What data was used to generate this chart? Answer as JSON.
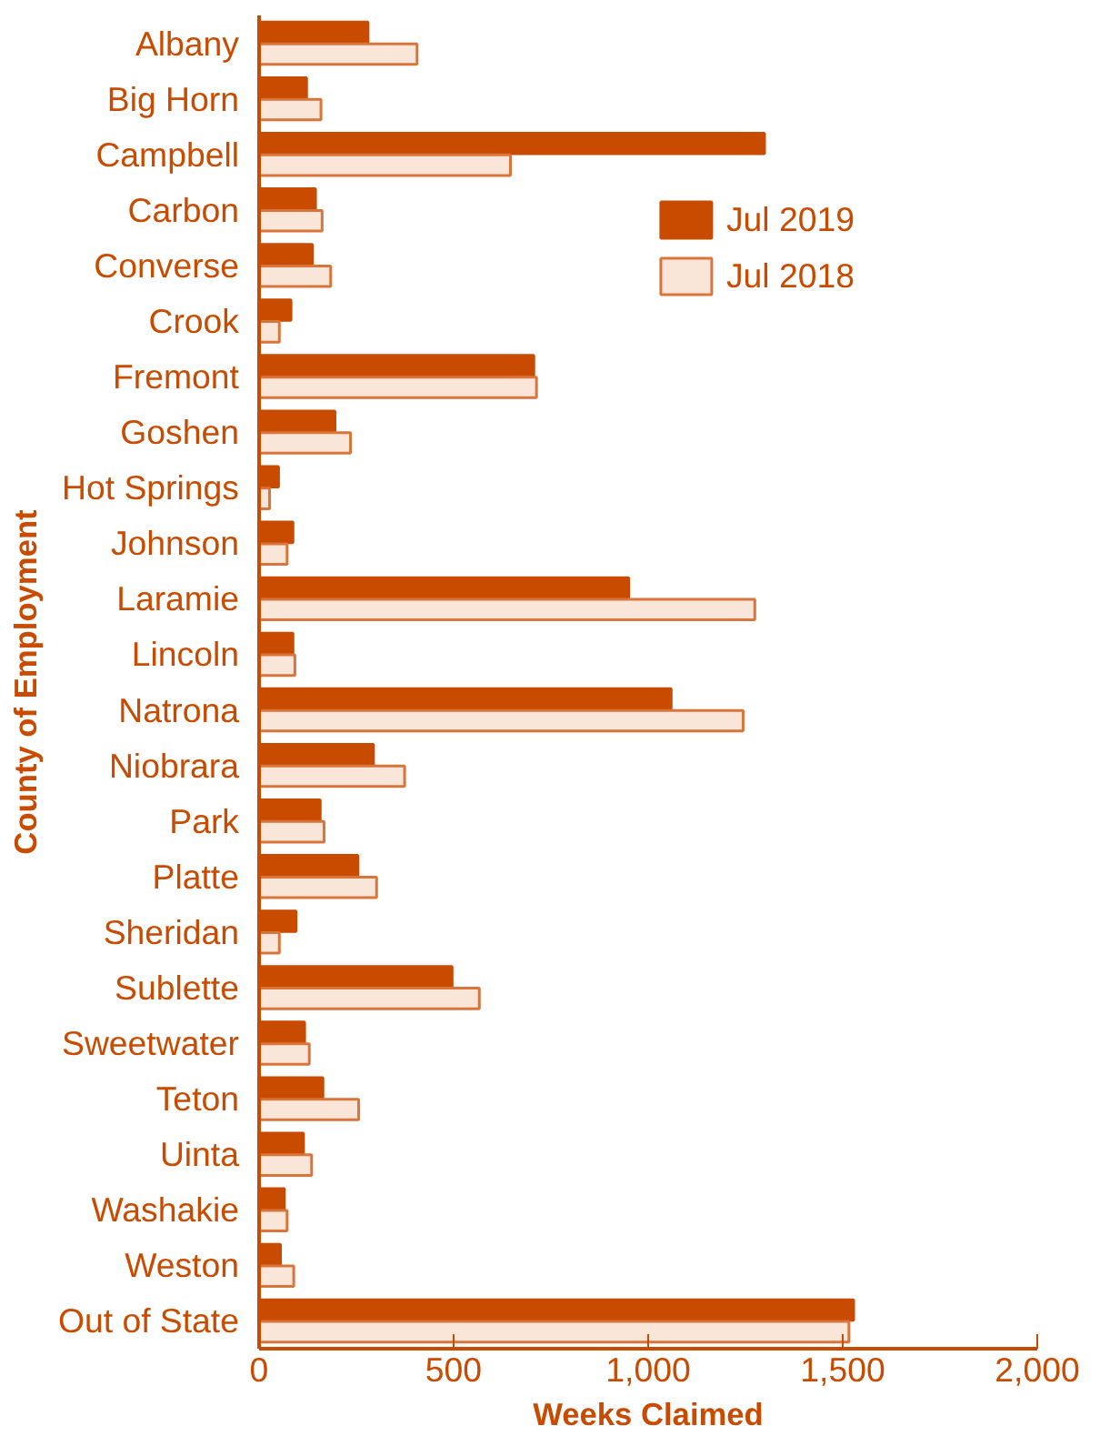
{
  "chart_data": {
    "type": "bar",
    "orientation": "horizontal",
    "xlabel": "Weeks Claimed",
    "ylabel": "County of Employment",
    "categories": [
      "Albany",
      "Big Horn",
      "Campbell",
      "Carbon",
      "Converse",
      "Crook",
      "Fremont",
      "Goshen",
      "Hot Springs",
      "Johnson",
      "Laramie",
      "Lincoln",
      "Natrona",
      "Niobrara",
      "Park",
      "Platte",
      "Sheridan",
      "Sublette",
      "Sweetwater",
      "Teton",
      "Uinta",
      "Washakie",
      "Weston",
      "Out of State"
    ],
    "series": [
      {
        "name": "Jul 2019",
        "color": "#c84b00",
        "values": [
          280,
          122,
          1299,
          145,
          137,
          82,
          706,
          195,
          50,
          87,
          950,
          87,
          1059,
          294,
          157,
          254,
          95,
          496,
          117,
          164,
          114,
          65,
          55,
          1528
        ]
      },
      {
        "name": "Jul 2018",
        "color": "#fae5d9",
        "values": [
          406,
          159,
          646,
          162,
          184,
          52,
          713,
          235,
          27,
          72,
          1274,
          92,
          1244,
          374,
          167,
          302,
          52,
          566,
          129,
          256,
          135,
          72,
          89,
          1516
        ]
      }
    ],
    "xlim": [
      0,
      2000
    ],
    "xticks": [
      0,
      500,
      {
        "value": 1000,
        "label": "1,000"
      },
      {
        "value": 1500,
        "label": "1,500"
      },
      {
        "value": 2000,
        "label": "2,000"
      }
    ],
    "grid": false,
    "legend": "top right"
  }
}
